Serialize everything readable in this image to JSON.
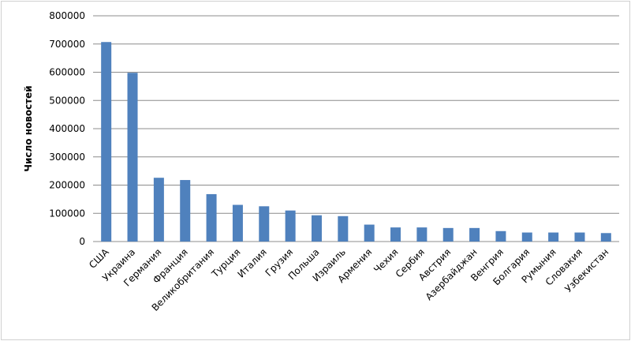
{
  "chart_data": {
    "type": "bar",
    "y_label": "Число новостей",
    "categories": [
      "США",
      "Украина",
      "Германия",
      "Франция",
      "Великобритания",
      "Турция",
      "Италия",
      "Грузия",
      "Польша",
      "Израиль",
      "Армения",
      "Чехия",
      "Сербия",
      "Австрия",
      "Азербайджан",
      "Венгрия",
      "Болгария",
      "Румыния",
      "Словакия",
      "Узбекистан"
    ],
    "values": [
      707000,
      598000,
      226000,
      218000,
      168000,
      130000,
      125000,
      110000,
      93000,
      90000,
      60000,
      50000,
      50000,
      48000,
      48000,
      37000,
      32000,
      32000,
      32000,
      30000
    ],
    "color": "#4f81bd",
    "ylim": [
      0,
      800000
    ],
    "yticks": [
      0,
      100000,
      200000,
      300000,
      400000,
      500000,
      600000,
      700000,
      800000
    ],
    "grid": true
  }
}
